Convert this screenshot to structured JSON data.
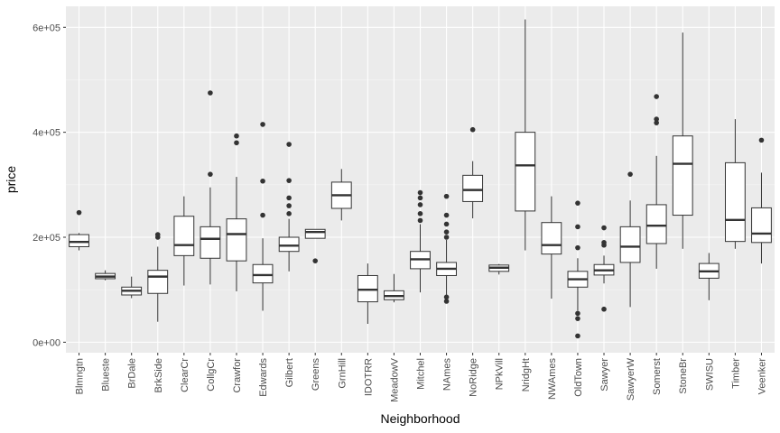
{
  "chart_data": {
    "type": "boxplot",
    "title": "",
    "xlabel": "Neighborhood",
    "ylabel": "price",
    "ylim": [
      -20000,
      640000
    ],
    "yticks": [
      0,
      200000,
      400000,
      600000
    ],
    "ytick_labels": [
      "0e+00",
      "2e+05",
      "4e+05",
      "6e+05"
    ],
    "grid": true,
    "colors": {
      "panel_bg": "#ebebeb",
      "grid_major": "#ffffff",
      "grid_minor": "#f5f5f5",
      "box_fill": "#ffffff",
      "box_stroke": "#333333",
      "outlier": "#333333"
    },
    "categories": [
      "Blmngtn",
      "Blueste",
      "BrDale",
      "BrkSide",
      "ClearCr",
      "CollgCr",
      "Crawfor",
      "Edwards",
      "Gilbert",
      "Greens",
      "GrnHill",
      "IDOTRR",
      "MeadowV",
      "Mitchel",
      "NAmes",
      "NoRidge",
      "NPkVill",
      "NridgHt",
      "NWAmes",
      "OldTown",
      "Sawyer",
      "SawyerW",
      "Somerst",
      "StoneBr",
      "SWISU",
      "Timber",
      "Veenker"
    ],
    "boxes": [
      {
        "name": "Blmngtn",
        "whisker_low": 175000,
        "q1": 182000,
        "median": 191000,
        "q3": 205000,
        "whisker_high": 208000,
        "outliers": [
          247000
        ]
      },
      {
        "name": "Blueste",
        "whisker_low": 118000,
        "q1": 121000,
        "median": 125000,
        "q3": 131000,
        "whisker_high": 137000,
        "outliers": []
      },
      {
        "name": "BrDale",
        "whisker_low": 84000,
        "q1": 90000,
        "median": 98000,
        "q3": 105000,
        "whisker_high": 125000,
        "outliers": []
      },
      {
        "name": "BrkSide",
        "whisker_low": 39000,
        "q1": 93000,
        "median": 125000,
        "q3": 137000,
        "whisker_high": 182000,
        "outliers": [
          200000,
          205000
        ]
      },
      {
        "name": "ClearCr",
        "whisker_low": 108000,
        "q1": 165000,
        "median": 185000,
        "q3": 240000,
        "whisker_high": 278000,
        "outliers": []
      },
      {
        "name": "CollgCr",
        "whisker_low": 110000,
        "q1": 160000,
        "median": 197000,
        "q3": 220000,
        "whisker_high": 295000,
        "outliers": [
          320000,
          475000
        ]
      },
      {
        "name": "Crawfor",
        "whisker_low": 97000,
        "q1": 155000,
        "median": 206000,
        "q3": 235000,
        "whisker_high": 315000,
        "outliers": [
          380000,
          393000
        ]
      },
      {
        "name": "Edwards",
        "whisker_low": 60000,
        "q1": 113000,
        "median": 128000,
        "q3": 148000,
        "whisker_high": 198000,
        "outliers": [
          242000,
          307000,
          415000
        ]
      },
      {
        "name": "Gilbert",
        "whisker_low": 135000,
        "q1": 173000,
        "median": 184000,
        "q3": 200000,
        "whisker_high": 235000,
        "outliers": [
          245000,
          260000,
          275000,
          308000,
          377000
        ]
      },
      {
        "name": "Greens",
        "whisker_low": 198000,
        "q1": 198000,
        "median": 210000,
        "q3": 215000,
        "whisker_high": 215000,
        "outliers": [
          155000
        ]
      },
      {
        "name": "GrnHill",
        "whisker_low": 232000,
        "q1": 255000,
        "median": 280000,
        "q3": 305000,
        "whisker_high": 330000,
        "outliers": []
      },
      {
        "name": "IDOTRR",
        "whisker_low": 35000,
        "q1": 77000,
        "median": 100000,
        "q3": 127000,
        "whisker_high": 150000,
        "outliers": []
      },
      {
        "name": "MeadowV",
        "whisker_low": 76000,
        "q1": 81000,
        "median": 88000,
        "q3": 98000,
        "whisker_high": 130000,
        "outliers": []
      },
      {
        "name": "Mitchel",
        "whisker_low": 95000,
        "q1": 140000,
        "median": 158000,
        "q3": 173000,
        "whisker_high": 225000,
        "outliers": [
          232000,
          245000,
          262000,
          275000,
          285000
        ]
      },
      {
        "name": "NAmes",
        "whisker_low": 90000,
        "q1": 127000,
        "median": 140000,
        "q3": 152000,
        "whisker_high": 195000,
        "outliers": [
          78000,
          86000,
          200000,
          210000,
          225000,
          242000,
          278000
        ]
      },
      {
        "name": "NoRidge",
        "whisker_low": 236000,
        "q1": 268000,
        "median": 290000,
        "q3": 318000,
        "whisker_high": 345000,
        "outliers": [
          405000
        ]
      },
      {
        "name": "NPkVill",
        "whisker_low": 129000,
        "q1": 135000,
        "median": 142000,
        "q3": 147000,
        "whisker_high": 149000,
        "outliers": []
      },
      {
        "name": "NridgHt",
        "whisker_low": 175000,
        "q1": 250000,
        "median": 337000,
        "q3": 400000,
        "whisker_high": 615000,
        "outliers": []
      },
      {
        "name": "NWAmes",
        "whisker_low": 83000,
        "q1": 168000,
        "median": 185000,
        "q3": 228000,
        "whisker_high": 278000,
        "outliers": []
      },
      {
        "name": "OldTown",
        "whisker_low": 60000,
        "q1": 105000,
        "median": 120000,
        "q3": 135000,
        "whisker_high": 160000,
        "outliers": [
          12000,
          45000,
          55000,
          180000,
          220000,
          265000
        ]
      },
      {
        "name": "Sawyer",
        "whisker_low": 112000,
        "q1": 128000,
        "median": 137000,
        "q3": 148000,
        "whisker_high": 165000,
        "outliers": [
          63000,
          185000,
          190000,
          218000
        ]
      },
      {
        "name": "SawyerW",
        "whisker_low": 67000,
        "q1": 152000,
        "median": 182000,
        "q3": 220000,
        "whisker_high": 270000,
        "outliers": [
          320000
        ]
      },
      {
        "name": "Somerst",
        "whisker_low": 140000,
        "q1": 188000,
        "median": 222000,
        "q3": 262000,
        "whisker_high": 355000,
        "outliers": [
          418000,
          425000,
          468000
        ]
      },
      {
        "name": "StoneBr",
        "whisker_low": 178000,
        "q1": 242000,
        "median": 340000,
        "q3": 393000,
        "whisker_high": 590000,
        "outliers": []
      },
      {
        "name": "SWISU",
        "whisker_low": 80000,
        "q1": 122000,
        "median": 135000,
        "q3": 150000,
        "whisker_high": 170000,
        "outliers": []
      },
      {
        "name": "Timber",
        "whisker_low": 178000,
        "q1": 192000,
        "median": 233000,
        "q3": 342000,
        "whisker_high": 425000,
        "outliers": []
      },
      {
        "name": "Veenker",
        "whisker_low": 150000,
        "q1": 190000,
        "median": 207000,
        "q3": 256000,
        "whisker_high": 323000,
        "outliers": [
          385000
        ]
      }
    ]
  }
}
